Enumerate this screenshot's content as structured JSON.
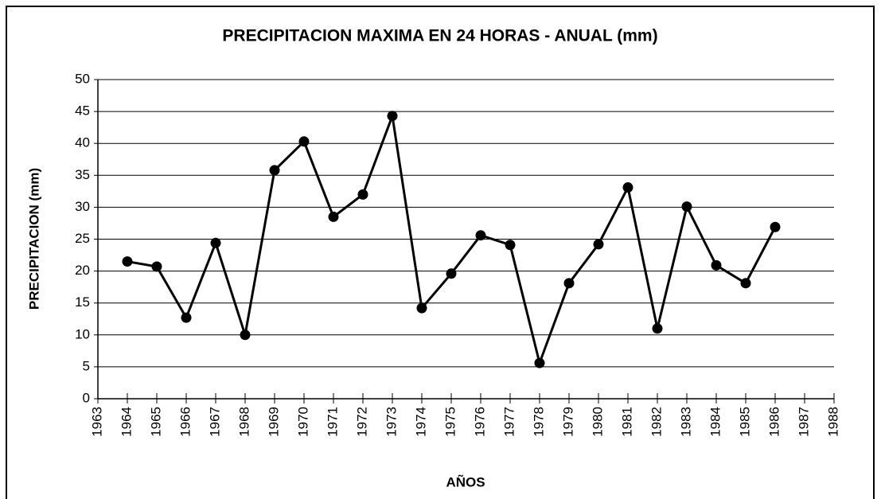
{
  "chart_data": {
    "type": "line",
    "title": "PRECIPITACION MAXIMA EN 24 HORAS - ANUAL (mm)",
    "x_label": "AÑOS",
    "y_label": "PRECIPITACION (mm)",
    "x": [
      1964,
      1965,
      1966,
      1967,
      1968,
      1969,
      1970,
      1971,
      1972,
      1973,
      1974,
      1975,
      1976,
      1977,
      1978,
      1979,
      1980,
      1981,
      1982,
      1983,
      1984,
      1985,
      1986
    ],
    "series": [
      {
        "name": "PRECIPITACION",
        "color": "#000000",
        "values": [
          21.5,
          20.7,
          12.7,
          24.4,
          10.0,
          35.8,
          40.3,
          28.5,
          32.0,
          44.3,
          14.2,
          19.6,
          25.6,
          24.1,
          5.6,
          18.1,
          24.2,
          33.1,
          11.0,
          30.1,
          20.9,
          18.1,
          26.9
        ]
      }
    ],
    "xlim": [
      1963,
      1988
    ],
    "xticks": [
      1963,
      1964,
      1965,
      1966,
      1967,
      1968,
      1969,
      1970,
      1971,
      1972,
      1973,
      1974,
      1975,
      1976,
      1977,
      1978,
      1979,
      1980,
      1981,
      1982,
      1983,
      1984,
      1985,
      1986,
      1987,
      1988
    ],
    "ylim": [
      0,
      50
    ],
    "yticks": [
      0,
      5,
      10,
      15,
      20,
      25,
      30,
      35,
      40,
      45,
      50
    ],
    "grid": true
  }
}
